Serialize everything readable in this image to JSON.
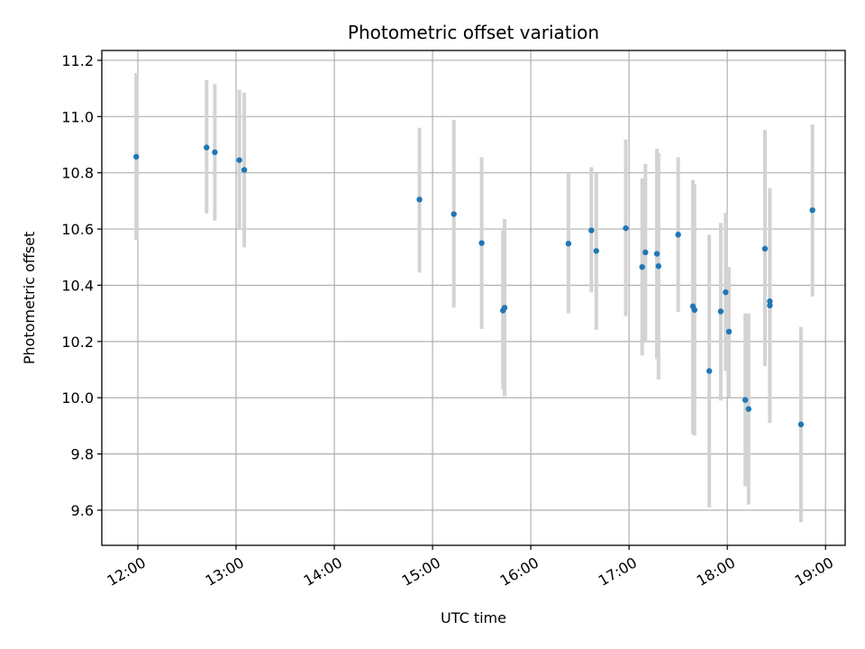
{
  "chart_data": {
    "type": "scatter",
    "title": "Photometric offset variation",
    "xlabel": "UTC time",
    "ylabel": "Photometric offset",
    "x_unit": "hours UTC",
    "xlim": [
      "11:38",
      "19:12"
    ],
    "ylim": [
      9.475,
      11.235
    ],
    "x_ticks": [
      "12:00",
      "13:00",
      "14:00",
      "15:00",
      "16:00",
      "17:00",
      "18:00",
      "19:00"
    ],
    "y_ticks": [
      9.6,
      9.8,
      10.0,
      10.2,
      10.4,
      10.6,
      10.8,
      11.0,
      11.2
    ],
    "y_tick_labels": [
      "9.6",
      "9.8",
      "10.0",
      "10.2",
      "10.4",
      "10.6",
      "10.8",
      "11.0",
      "11.2"
    ],
    "grid": true,
    "point_color": "#1f77b4",
    "errorbar_color": "#d3d3d3",
    "points": [
      {
        "t": "11:59",
        "y": 10.857,
        "lo": 10.56,
        "hi": 11.155
      },
      {
        "t": "12:42",
        "y": 10.89,
        "lo": 10.655,
        "hi": 11.13
      },
      {
        "t": "12:47",
        "y": 10.873,
        "lo": 10.63,
        "hi": 11.115
      },
      {
        "t": "13:02",
        "y": 10.845,
        "lo": 10.6,
        "hi": 11.095
      },
      {
        "t": "13:05",
        "y": 10.81,
        "lo": 10.535,
        "hi": 11.085
      },
      {
        "t": "14:52",
        "y": 10.705,
        "lo": 10.445,
        "hi": 10.96
      },
      {
        "t": "15:13",
        "y": 10.653,
        "lo": 10.32,
        "hi": 10.988
      },
      {
        "t": "15:30",
        "y": 10.55,
        "lo": 10.245,
        "hi": 10.855
      },
      {
        "t": "15:43",
        "y": 10.31,
        "lo": 10.03,
        "hi": 10.595
      },
      {
        "t": "15:44",
        "y": 10.32,
        "lo": 10.005,
        "hi": 10.635
      },
      {
        "t": "16:23",
        "y": 10.548,
        "lo": 10.3,
        "hi": 10.8
      },
      {
        "t": "16:37",
        "y": 10.595,
        "lo": 10.375,
        "hi": 10.82
      },
      {
        "t": "16:40",
        "y": 10.522,
        "lo": 10.242,
        "hi": 10.797
      },
      {
        "t": "16:58",
        "y": 10.603,
        "lo": 10.29,
        "hi": 10.918
      },
      {
        "t": "17:08",
        "y": 10.465,
        "lo": 10.15,
        "hi": 10.78
      },
      {
        "t": "17:10",
        "y": 10.517,
        "lo": 10.2,
        "hi": 10.832
      },
      {
        "t": "17:17",
        "y": 10.512,
        "lo": 10.138,
        "hi": 10.885
      },
      {
        "t": "17:18",
        "y": 10.468,
        "lo": 10.065,
        "hi": 10.87
      },
      {
        "t": "17:30",
        "y": 10.58,
        "lo": 10.305,
        "hi": 10.855
      },
      {
        "t": "17:39",
        "y": 10.325,
        "lo": 9.87,
        "hi": 10.775
      },
      {
        "t": "17:40",
        "y": 10.312,
        "lo": 9.865,
        "hi": 10.76
      },
      {
        "t": "17:49",
        "y": 10.095,
        "lo": 9.61,
        "hi": 10.58
      },
      {
        "t": "17:56",
        "y": 10.307,
        "lo": 9.99,
        "hi": 10.622
      },
      {
        "t": "17:59",
        "y": 10.375,
        "lo": 10.095,
        "hi": 10.658
      },
      {
        "t": "18:01",
        "y": 10.235,
        "lo": 10.002,
        "hi": 10.465
      },
      {
        "t": "18:11",
        "y": 9.992,
        "lo": 9.685,
        "hi": 10.3
      },
      {
        "t": "18:13",
        "y": 9.96,
        "lo": 9.62,
        "hi": 10.3
      },
      {
        "t": "18:23",
        "y": 10.53,
        "lo": 10.112,
        "hi": 10.952
      },
      {
        "t": "18:26",
        "y": 10.328,
        "lo": 9.91,
        "hi": 10.745
      },
      {
        "t": "18:26",
        "y": 10.343,
        "lo": 9.94,
        "hi": 10.745
      },
      {
        "t": "18:45",
        "y": 9.905,
        "lo": 9.557,
        "hi": 10.252
      },
      {
        "t": "18:52",
        "y": 10.667,
        "lo": 10.36,
        "hi": 10.972
      }
    ]
  }
}
